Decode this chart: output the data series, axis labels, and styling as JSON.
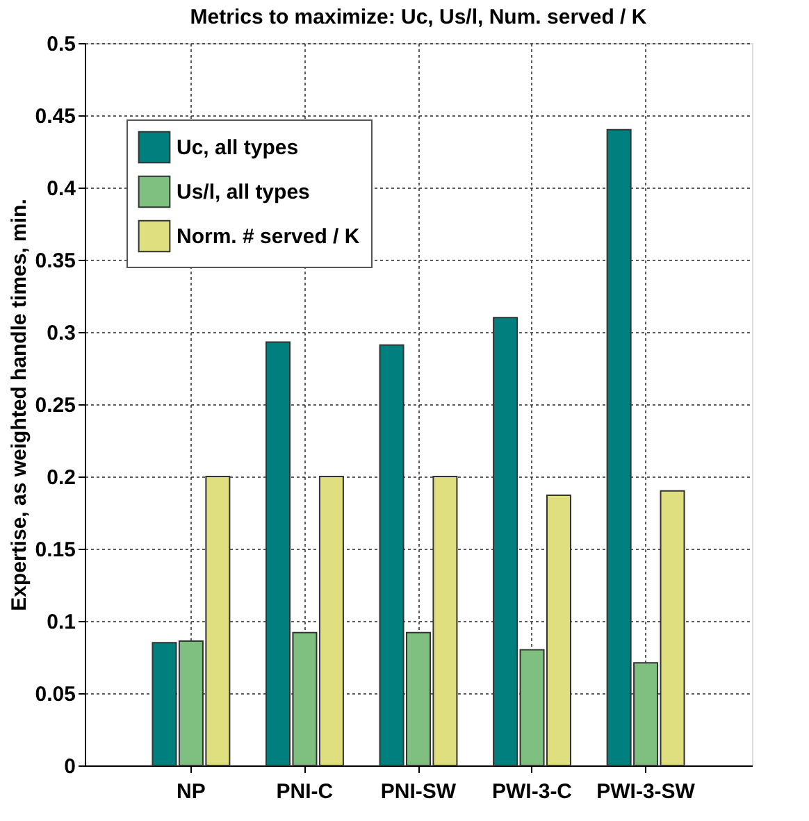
{
  "chart_data": {
    "type": "bar",
    "title": "Metrics to maximize:  Uc, Us/l, Num. served / K",
    "ylabel": "Expertise, as weighted handle times, min.",
    "categories": [
      "NP",
      "PNI-C",
      "PNI-SW",
      "PWI-3-C",
      "PWI-3-SW"
    ],
    "series": [
      {
        "name": "Uc, all types",
        "color": "#007f7f",
        "values": [
          0.085,
          0.293,
          0.291,
          0.31,
          0.44
        ]
      },
      {
        "name": "Us/l, all types",
        "color": "#7fbf7f",
        "values": [
          0.086,
          0.092,
          0.092,
          0.08,
          0.071
        ]
      },
      {
        "name": "Norm. # served / K",
        "color": "#dfdf7f",
        "values": [
          0.2,
          0.2,
          0.2,
          0.187,
          0.19
        ]
      }
    ],
    "ylim": [
      0,
      0.5
    ],
    "yticks": [
      0,
      0.05,
      0.1,
      0.15,
      0.2,
      0.25,
      0.3,
      0.35,
      0.4,
      0.45,
      0.5
    ],
    "grid": true,
    "legend": "top left"
  }
}
